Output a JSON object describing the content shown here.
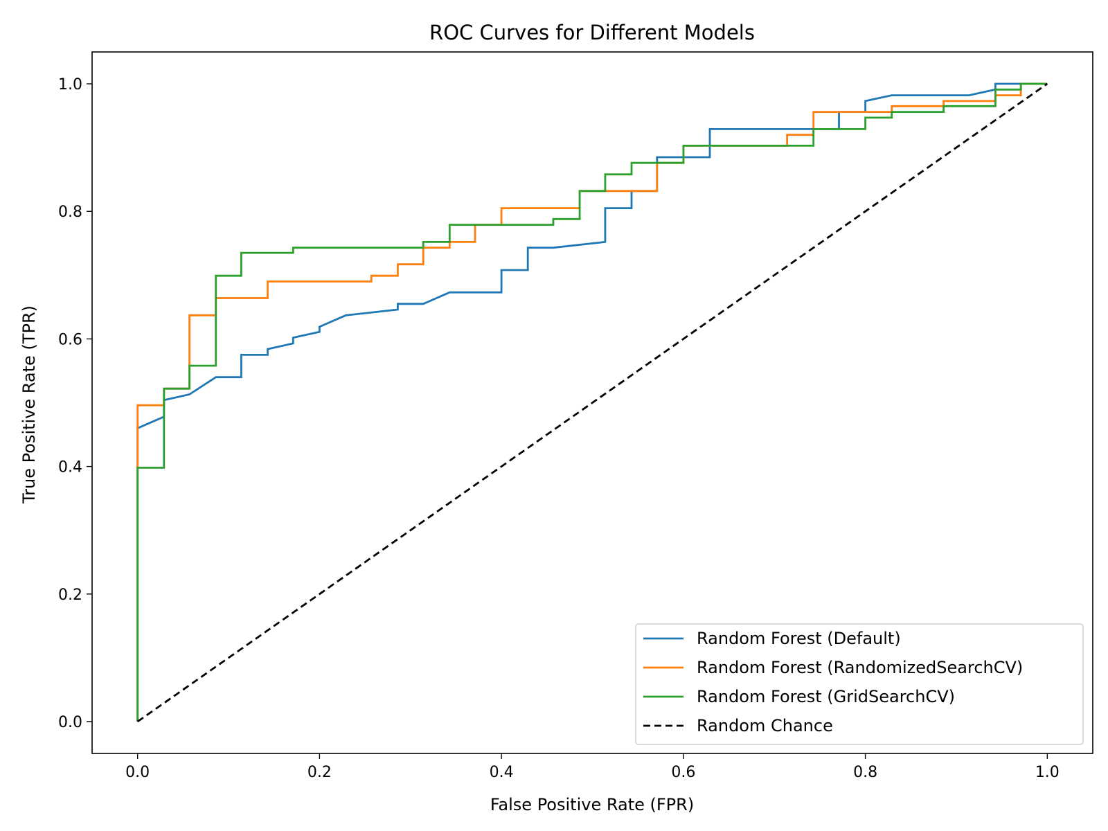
{
  "chart_data": {
    "type": "line",
    "title": "ROC Curves for Different Models",
    "xlabel": "False Positive Rate (FPR)",
    "ylabel": "True Positive Rate (TPR)",
    "xlim": [
      -0.05,
      1.05
    ],
    "ylim": [
      -0.05,
      1.05
    ],
    "xticks": [
      "0.0",
      "0.2",
      "0.4",
      "0.6",
      "0.8",
      "1.0"
    ],
    "yticks": [
      "0.0",
      "0.2",
      "0.4",
      "0.6",
      "0.8",
      "1.0"
    ],
    "grid": false,
    "legend_position": "lower-right",
    "series": [
      {
        "name": "Random Forest (Default)",
        "color": "#1f77b4",
        "style": "solid",
        "points": [
          [
            0,
            0
          ],
          [
            0,
            0.46
          ],
          [
            0.029,
            0.478
          ],
          [
            0.029,
            0.504
          ],
          [
            0.057,
            0.513
          ],
          [
            0.086,
            0.54
          ],
          [
            0.114,
            0.54
          ],
          [
            0.114,
            0.575
          ],
          [
            0.143,
            0.575
          ],
          [
            0.143,
            0.584
          ],
          [
            0.171,
            0.593
          ],
          [
            0.171,
            0.602
          ],
          [
            0.2,
            0.611
          ],
          [
            0.2,
            0.619
          ],
          [
            0.229,
            0.637
          ],
          [
            0.286,
            0.646
          ],
          [
            0.286,
            0.655
          ],
          [
            0.314,
            0.655
          ],
          [
            0.343,
            0.673
          ],
          [
            0.4,
            0.673
          ],
          [
            0.4,
            0.708
          ],
          [
            0.429,
            0.708
          ],
          [
            0.429,
            0.743
          ],
          [
            0.457,
            0.743
          ],
          [
            0.514,
            0.752
          ],
          [
            0.514,
            0.805
          ],
          [
            0.543,
            0.805
          ],
          [
            0.543,
            0.832
          ],
          [
            0.571,
            0.832
          ],
          [
            0.571,
            0.885
          ],
          [
            0.629,
            0.885
          ],
          [
            0.629,
            0.929
          ],
          [
            0.771,
            0.929
          ],
          [
            0.771,
            0.956
          ],
          [
            0.8,
            0.956
          ],
          [
            0.8,
            0.973
          ],
          [
            0.829,
            0.982
          ],
          [
            0.914,
            0.982
          ],
          [
            0.943,
            0.991
          ],
          [
            0.943,
            1.0
          ],
          [
            1.0,
            1.0
          ]
        ]
      },
      {
        "name": "Random Forest (RandomizedSearchCV)",
        "color": "#ff7f0e",
        "style": "solid",
        "points": [
          [
            0,
            0
          ],
          [
            0,
            0.4
          ],
          [
            0,
            0.496
          ],
          [
            0.029,
            0.496
          ],
          [
            0.029,
            0.522
          ],
          [
            0.057,
            0.522
          ],
          [
            0.057,
            0.637
          ],
          [
            0.086,
            0.637
          ],
          [
            0.086,
            0.664
          ],
          [
            0.143,
            0.664
          ],
          [
            0.143,
            0.69
          ],
          [
            0.257,
            0.69
          ],
          [
            0.257,
            0.699
          ],
          [
            0.286,
            0.699
          ],
          [
            0.286,
            0.717
          ],
          [
            0.314,
            0.717
          ],
          [
            0.314,
            0.743
          ],
          [
            0.343,
            0.743
          ],
          [
            0.343,
            0.752
          ],
          [
            0.371,
            0.752
          ],
          [
            0.371,
            0.779
          ],
          [
            0.4,
            0.779
          ],
          [
            0.4,
            0.805
          ],
          [
            0.486,
            0.805
          ],
          [
            0.486,
            0.832
          ],
          [
            0.571,
            0.832
          ],
          [
            0.571,
            0.876
          ],
          [
            0.6,
            0.876
          ],
          [
            0.6,
            0.903
          ],
          [
            0.714,
            0.903
          ],
          [
            0.714,
            0.92
          ],
          [
            0.743,
            0.92
          ],
          [
            0.743,
            0.956
          ],
          [
            0.829,
            0.956
          ],
          [
            0.829,
            0.965
          ],
          [
            0.886,
            0.965
          ],
          [
            0.886,
            0.973
          ],
          [
            0.943,
            0.973
          ],
          [
            0.943,
            0.982
          ],
          [
            0.971,
            0.982
          ],
          [
            0.971,
            1.0
          ],
          [
            1.0,
            1.0
          ]
        ]
      },
      {
        "name": "Random Forest (GridSearchCV)",
        "color": "#2ca02c",
        "style": "solid",
        "points": [
          [
            0,
            0
          ],
          [
            0,
            0.398
          ],
          [
            0.029,
            0.398
          ],
          [
            0.029,
            0.522
          ],
          [
            0.057,
            0.522
          ],
          [
            0.057,
            0.558
          ],
          [
            0.086,
            0.558
          ],
          [
            0.086,
            0.699
          ],
          [
            0.114,
            0.699
          ],
          [
            0.114,
            0.735
          ],
          [
            0.171,
            0.735
          ],
          [
            0.171,
            0.743
          ],
          [
            0.314,
            0.743
          ],
          [
            0.314,
            0.752
          ],
          [
            0.343,
            0.752
          ],
          [
            0.343,
            0.779
          ],
          [
            0.457,
            0.779
          ],
          [
            0.457,
            0.788
          ],
          [
            0.486,
            0.788
          ],
          [
            0.486,
            0.832
          ],
          [
            0.514,
            0.832
          ],
          [
            0.514,
            0.858
          ],
          [
            0.543,
            0.858
          ],
          [
            0.543,
            0.876
          ],
          [
            0.6,
            0.876
          ],
          [
            0.6,
            0.903
          ],
          [
            0.743,
            0.903
          ],
          [
            0.743,
            0.929
          ],
          [
            0.8,
            0.929
          ],
          [
            0.8,
            0.947
          ],
          [
            0.829,
            0.947
          ],
          [
            0.829,
            0.956
          ],
          [
            0.886,
            0.956
          ],
          [
            0.886,
            0.965
          ],
          [
            0.943,
            0.965
          ],
          [
            0.943,
            0.991
          ],
          [
            0.971,
            0.991
          ],
          [
            0.971,
            1.0
          ],
          [
            1.0,
            1.0
          ]
        ]
      },
      {
        "name": "Random Chance",
        "color": "#000000",
        "style": "dashed",
        "points": [
          [
            0,
            0
          ],
          [
            1,
            1
          ]
        ]
      }
    ]
  }
}
